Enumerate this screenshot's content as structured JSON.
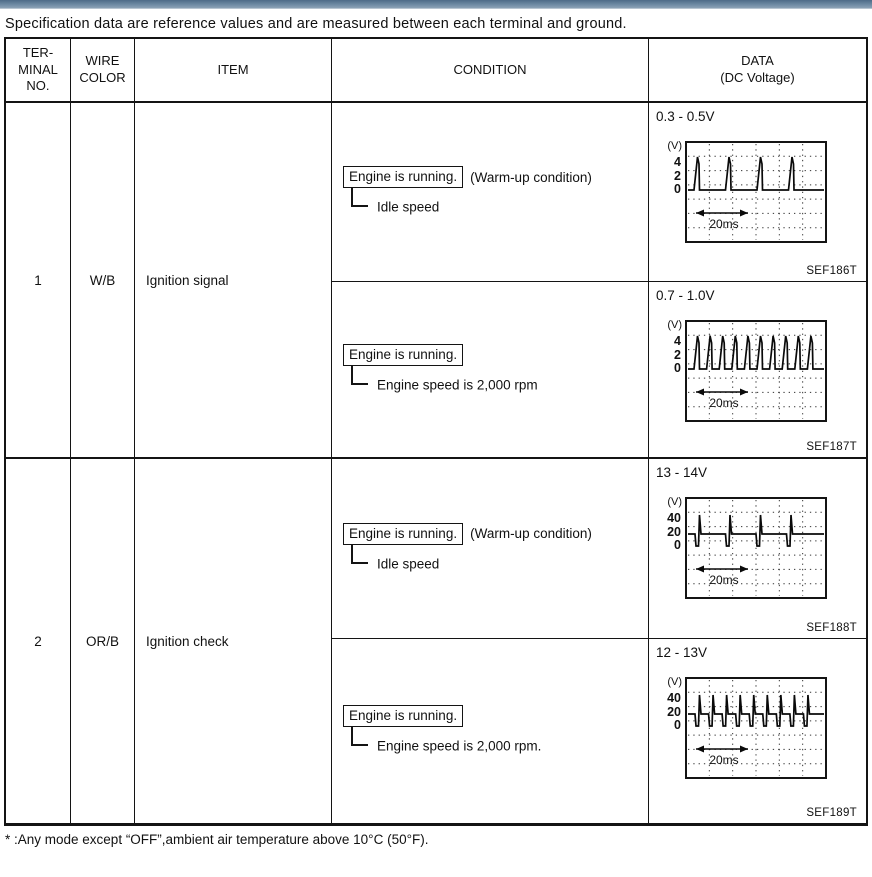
{
  "page": {
    "intro": "Specification data are reference values and are measured between each terminal and ground.",
    "footnote": "* :Any mode except “OFF”,ambient air temperature above 10°C (50°F).",
    "accent_bar_color": "#5f7d98"
  },
  "table": {
    "headers": {
      "terminal": "TER-\nMINAL\nNO.",
      "wire": "WIRE\nCOLOR",
      "item": "ITEM",
      "condition": "CONDITION",
      "data": "DATA\n(DC Voltage)"
    },
    "terminals": [
      {
        "no": "1",
        "wire": "W/B",
        "item": "Ignition signal",
        "rows": [
          {
            "condition": {
              "box": "Engine is running.",
              "suffix": "(Warm-up condition)",
              "branch": "Idle speed"
            },
            "data": {
              "range": "0.3 - 0.5V",
              "caption": "SEF186T",
              "scope": {
                "unit": "(V)",
                "ylabels": [
                  "4",
                  "2",
                  "0"
                ],
                "time": "20ms",
                "wave": "spike",
                "count": 4
              }
            }
          },
          {
            "condition": {
              "box": "Engine is running.",
              "suffix": "",
              "branch": "Engine speed is 2,000 rpm"
            },
            "data": {
              "range": "0.7 - 1.0V",
              "caption": "SEF187T",
              "scope": {
                "unit": "(V)",
                "ylabels": [
                  "4",
                  "2",
                  "0"
                ],
                "time": "20ms",
                "wave": "spike",
                "count": 10
              }
            }
          }
        ]
      },
      {
        "no": "2",
        "wire": "OR/B",
        "item": "Ignition check",
        "rows": [
          {
            "condition": {
              "box": "Engine is running.",
              "suffix": "(Warm-up condition)",
              "branch": "Idle speed"
            },
            "data": {
              "range": "13 - 14V",
              "caption": "SEF188T",
              "scope": {
                "unit": "(V)",
                "ylabels": [
                  "40",
                  "20",
                  "0"
                ],
                "time": "20ms",
                "wave": "pulse",
                "count": 4
              }
            }
          },
          {
            "condition": {
              "box": "Engine is running.",
              "suffix": "",
              "branch": "Engine speed is 2,000 rpm."
            },
            "data": {
              "range": "12 - 13V",
              "caption": "SEF189T",
              "scope": {
                "unit": "(V)",
                "ylabels": [
                  "40",
                  "20",
                  "0"
                ],
                "time": "20ms",
                "wave": "pulse",
                "count": 9
              }
            }
          }
        ]
      }
    ]
  }
}
